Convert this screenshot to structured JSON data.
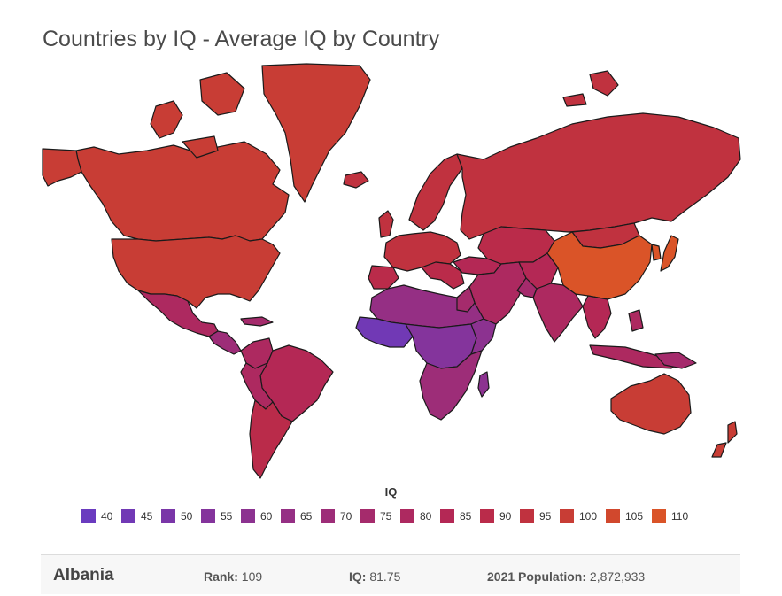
{
  "title": "Countries by IQ - Average IQ by Country",
  "legend": {
    "title": "IQ",
    "items": [
      {
        "label": "40",
        "color": "#6a3bbf"
      },
      {
        "label": "45",
        "color": "#7139b5"
      },
      {
        "label": "50",
        "color": "#7a36a8"
      },
      {
        "label": "55",
        "color": "#84349c"
      },
      {
        "label": "60",
        "color": "#8c3290"
      },
      {
        "label": "65",
        "color": "#952f84"
      },
      {
        "label": "70",
        "color": "#9d2d78"
      },
      {
        "label": "75",
        "color": "#a52b6c"
      },
      {
        "label": "80",
        "color": "#ad2960"
      },
      {
        "label": "85",
        "color": "#b42855"
      },
      {
        "label": "90",
        "color": "#ba2b4a"
      },
      {
        "label": "95",
        "color": "#c0323f"
      },
      {
        "label": "100",
        "color": "#c83d35"
      },
      {
        "label": "105",
        "color": "#d1482d"
      },
      {
        "label": "110",
        "color": "#da5428"
      }
    ]
  },
  "selected_country": {
    "name": "Albania",
    "rank_label": "Rank:",
    "rank_value": "109",
    "iq_label": "IQ:",
    "iq_value": "81.75",
    "population_label": "2021 Population:",
    "population_value": "2,872,933"
  }
}
